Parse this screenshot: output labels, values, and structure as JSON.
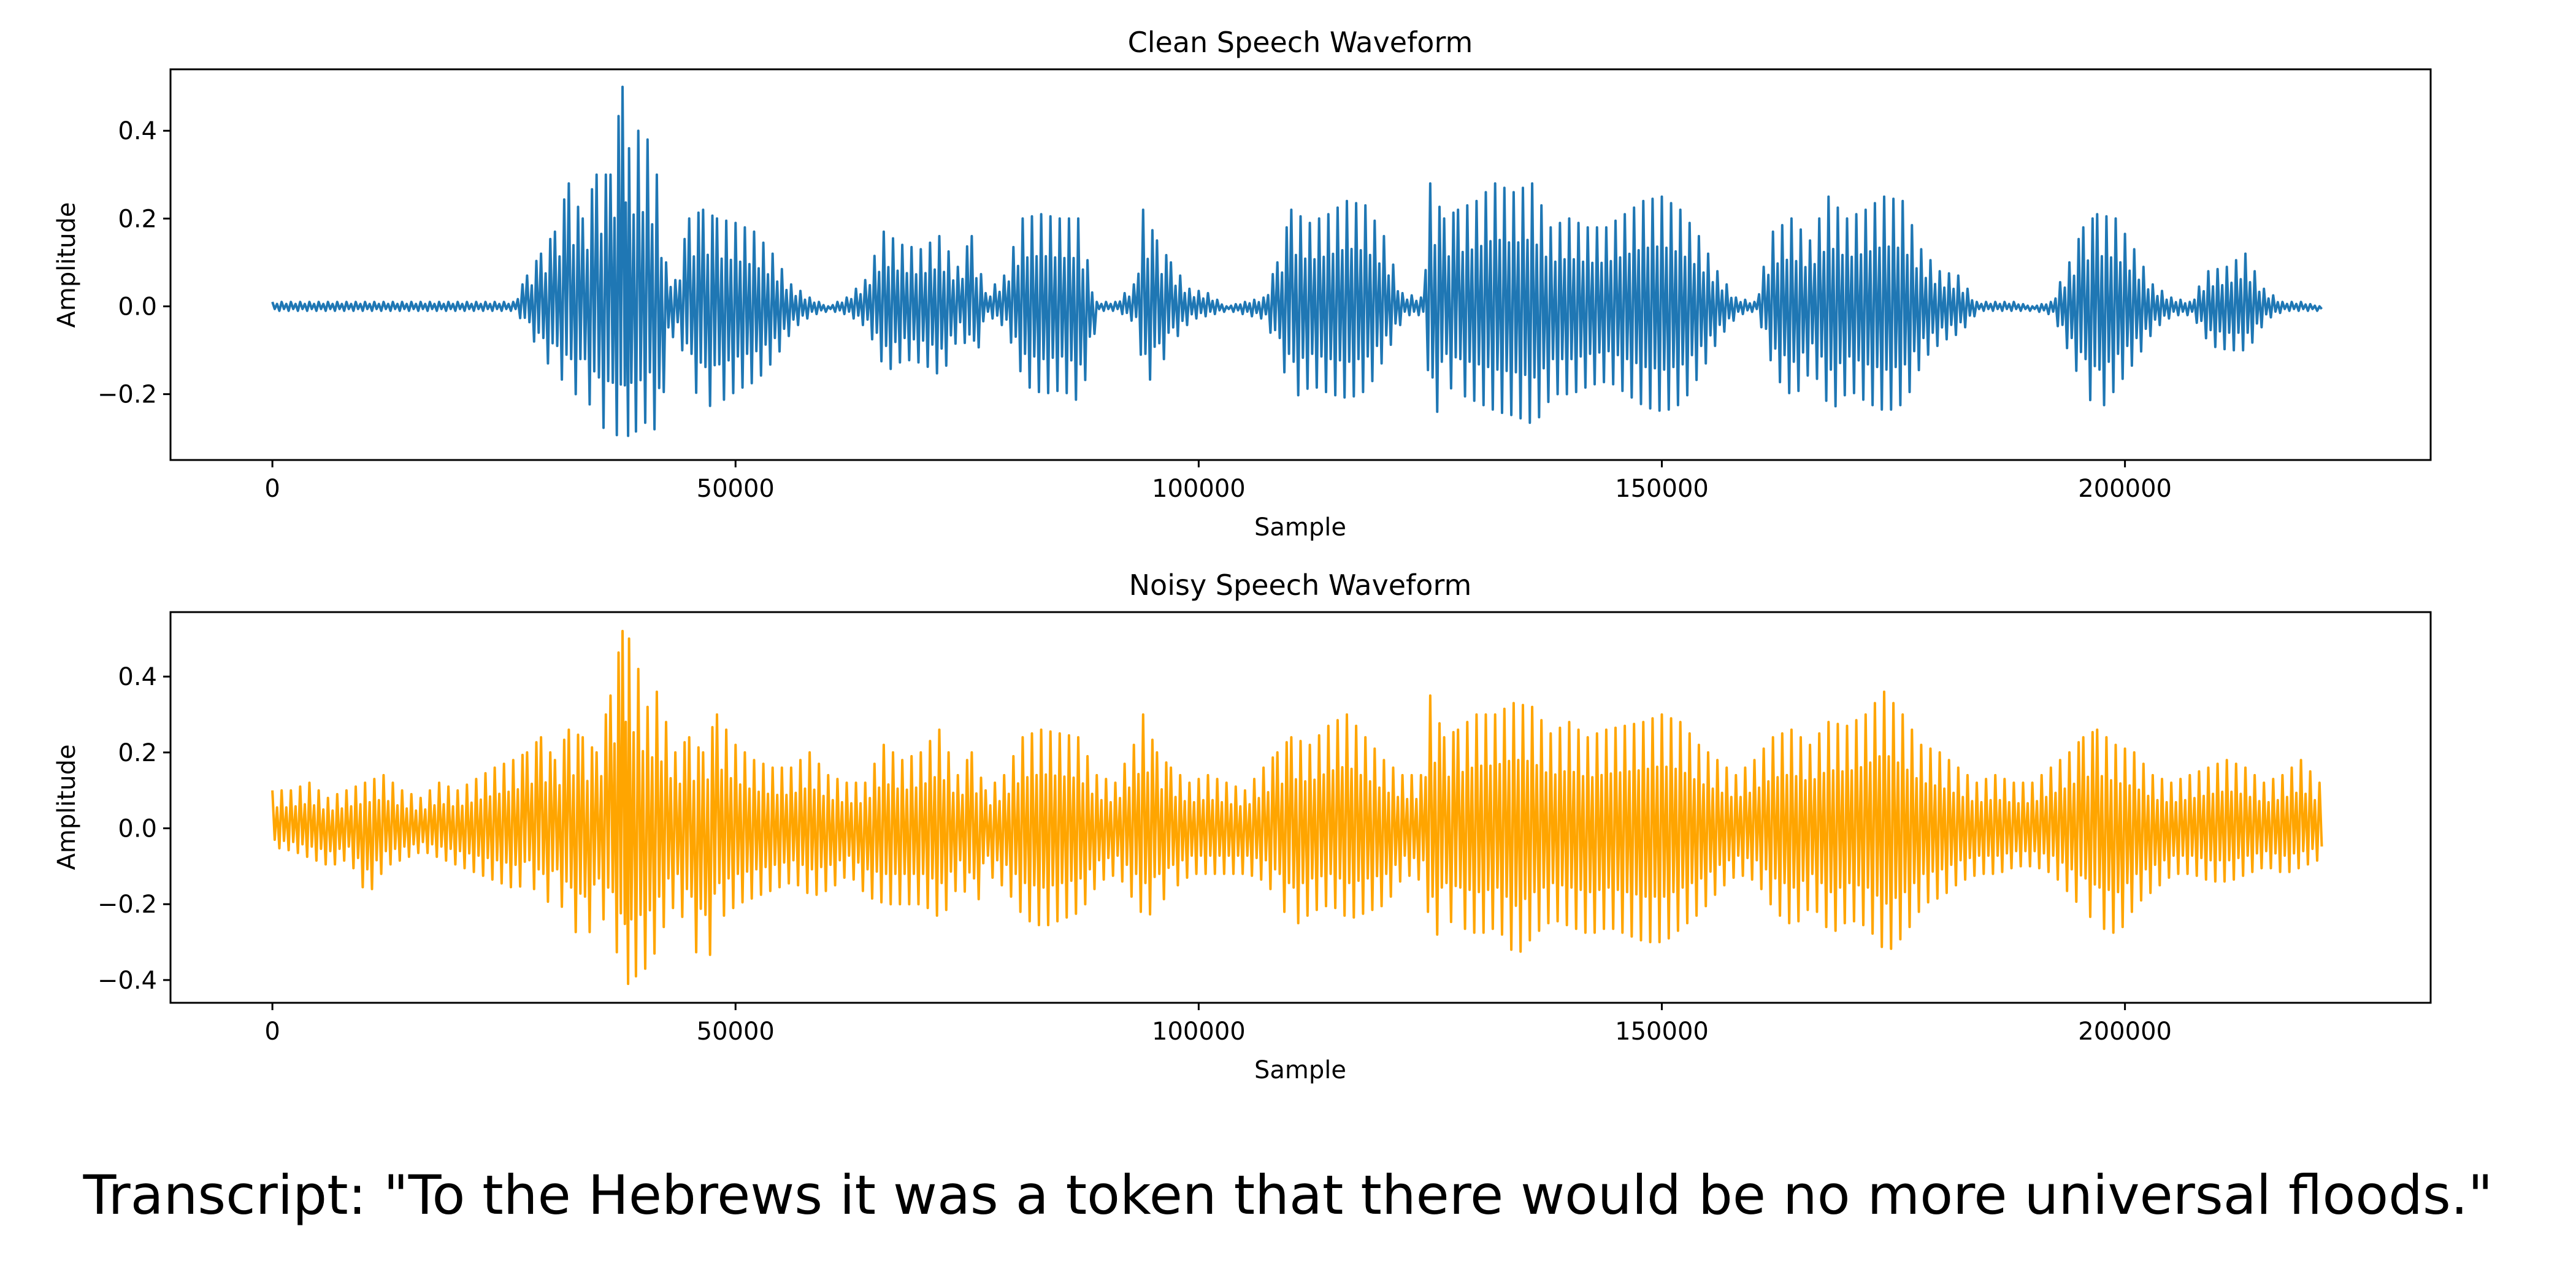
{
  "chart_data": [
    {
      "type": "line",
      "title": "Clean Speech Waveform",
      "xlabel": "Sample",
      "ylabel": "Amplitude",
      "xlim": [
        -11000,
        233000
      ],
      "ylim": [
        -0.35,
        0.54
      ],
      "xticks": [
        0,
        50000,
        100000,
        150000,
        200000
      ],
      "xtick_labels": [
        "0",
        "50000",
        "100000",
        "150000",
        "200000"
      ],
      "yticks": [
        0.4,
        0.2,
        0.0,
        -0.2
      ],
      "ytick_labels": [
        "0.4",
        "0.2",
        "0.0",
        "−0.2"
      ],
      "grid": false,
      "series": [
        {
          "color": "#1f77b4",
          "x": [
            0,
            2000,
            4000,
            6000,
            8000,
            10000,
            12000,
            14000,
            16000,
            18000,
            20000,
            22000,
            24000,
            26000,
            27500,
            29000,
            30500,
            32000,
            33500,
            35000,
            36500,
            37800,
            38500,
            39500,
            40500,
            41500,
            42500,
            43500,
            45000,
            46500,
            48000,
            50000,
            52000,
            54000,
            56000,
            58000,
            60000,
            62000,
            64000,
            66000,
            68000,
            70000,
            72000,
            74000,
            75500,
            77000,
            79000,
            81000,
            83000,
            85000,
            87000,
            89000,
            91000,
            93000,
            94000,
            95500,
            97000,
            99000,
            101000,
            103000,
            105000,
            107000,
            108500,
            110000,
            112000,
            114000,
            116000,
            118000,
            120000,
            122000,
            124000,
            125000,
            126500,
            128000,
            130000,
            132000,
            134000,
            136000,
            138000,
            140000,
            142000,
            144000,
            146000,
            148000,
            150000,
            152000,
            154000,
            156000,
            158000,
            160000,
            162000,
            164000,
            166000,
            168000,
            170000,
            172000,
            174000,
            176000,
            178000,
            180000,
            182000,
            184000,
            186000,
            188000,
            190000,
            192000,
            194000,
            195500,
            197000,
            199000,
            201000,
            203000,
            205000,
            207000,
            209000,
            211000,
            213000,
            215000,
            217000,
            219000,
            221000
          ],
          "y_max": [
            0.01,
            0.01,
            0.01,
            0.01,
            0.01,
            0.01,
            0.01,
            0.01,
            0.01,
            0.01,
            0.01,
            0.01,
            0.01,
            0.01,
            0.07,
            0.12,
            0.17,
            0.28,
            0.2,
            0.3,
            0.3,
            0.5,
            0.36,
            0.4,
            0.38,
            0.3,
            0.1,
            0.06,
            0.2,
            0.22,
            0.2,
            0.19,
            0.17,
            0.12,
            0.05,
            0.02,
            0.0,
            0.02,
            0.06,
            0.17,
            0.14,
            0.13,
            0.16,
            0.09,
            0.16,
            0.03,
            0.07,
            0.2,
            0.21,
            0.2,
            0.2,
            0.01,
            0.01,
            0.05,
            0.22,
            0.15,
            0.1,
            0.04,
            0.03,
            0.0,
            0.01,
            0.02,
            0.1,
            0.22,
            0.19,
            0.21,
            0.24,
            0.23,
            0.16,
            0.03,
            0.02,
            0.28,
            0.2,
            0.22,
            0.24,
            0.28,
            0.26,
            0.28,
            0.18,
            0.2,
            0.18,
            0.18,
            0.21,
            0.24,
            0.25,
            0.22,
            0.16,
            0.08,
            0.02,
            0.01,
            0.17,
            0.2,
            0.15,
            0.25,
            0.2,
            0.22,
            0.25,
            0.24,
            0.13,
            0.08,
            0.07,
            0.01,
            0.01,
            0.01,
            0.0,
            0.01,
            0.1,
            0.18,
            0.21,
            0.2,
            0.13,
            0.05,
            0.02,
            0.01,
            0.08,
            0.09,
            0.12,
            0.04,
            0.01,
            0.01,
            0.0
          ],
          "y_min": [
            -0.01,
            -0.01,
            -0.01,
            -0.01,
            -0.01,
            -0.01,
            -0.01,
            -0.01,
            -0.01,
            -0.01,
            -0.01,
            -0.01,
            -0.01,
            -0.01,
            -0.06,
            -0.12,
            -0.15,
            -0.2,
            -0.2,
            -0.27,
            -0.29,
            -0.3,
            -0.29,
            -0.28,
            -0.25,
            -0.31,
            -0.08,
            -0.06,
            -0.18,
            -0.23,
            -0.22,
            -0.19,
            -0.17,
            -0.12,
            -0.05,
            -0.02,
            -0.01,
            -0.02,
            -0.05,
            -0.15,
            -0.12,
            -0.13,
            -0.16,
            -0.06,
            -0.13,
            -0.02,
            -0.05,
            -0.18,
            -0.2,
            -0.19,
            -0.22,
            -0.01,
            -0.01,
            -0.04,
            -0.18,
            -0.14,
            -0.08,
            -0.03,
            -0.02,
            -0.01,
            -0.02,
            -0.03,
            -0.12,
            -0.21,
            -0.18,
            -0.2,
            -0.21,
            -0.19,
            -0.11,
            -0.02,
            -0.02,
            -0.27,
            -0.18,
            -0.2,
            -0.22,
            -0.24,
            -0.25,
            -0.27,
            -0.2,
            -0.2,
            -0.18,
            -0.17,
            -0.2,
            -0.23,
            -0.24,
            -0.22,
            -0.15,
            -0.07,
            -0.02,
            -0.01,
            -0.16,
            -0.21,
            -0.14,
            -0.24,
            -0.19,
            -0.22,
            -0.24,
            -0.22,
            -0.12,
            -0.08,
            -0.06,
            -0.01,
            -0.01,
            -0.01,
            -0.01,
            -0.02,
            -0.12,
            -0.2,
            -0.24,
            -0.18,
            -0.12,
            -0.05,
            -0.02,
            -0.02,
            -0.09,
            -0.1,
            -0.1,
            -0.03,
            -0.01,
            -0.01,
            -0.01
          ]
        }
      ]
    },
    {
      "type": "line",
      "title": "Noisy Speech Waveform",
      "xlabel": "Sample",
      "ylabel": "Amplitude",
      "xlim": [
        -11000,
        233000
      ],
      "ylim": [
        -0.46,
        0.57
      ],
      "xticks": [
        0,
        50000,
        100000,
        150000,
        200000
      ],
      "xtick_labels": [
        "0",
        "50000",
        "100000",
        "150000",
        "200000"
      ],
      "yticks": [
        0.4,
        0.2,
        0.0,
        -0.2,
        -0.4
      ],
      "ytick_labels": [
        "0.4",
        "0.2",
        "0.0",
        "−0.2",
        "−0.4"
      ],
      "grid": false,
      "series": [
        {
          "color": "#ffa500",
          "x": [
            0,
            2000,
            4000,
            6000,
            8000,
            10000,
            12000,
            14000,
            16000,
            18000,
            20000,
            22000,
            24000,
            26000,
            27500,
            29000,
            30500,
            32000,
            33500,
            35000,
            36500,
            37800,
            38500,
            39500,
            40500,
            41500,
            42500,
            43500,
            45000,
            46500,
            48000,
            50000,
            52000,
            54000,
            56000,
            58000,
            60000,
            62000,
            64000,
            66000,
            68000,
            70000,
            72000,
            74000,
            75500,
            77000,
            79000,
            81000,
            83000,
            85000,
            87000,
            89000,
            91000,
            93000,
            94000,
            95500,
            97000,
            99000,
            101000,
            103000,
            105000,
            107000,
            108500,
            110000,
            112000,
            114000,
            116000,
            118000,
            120000,
            122000,
            124000,
            125000,
            126500,
            128000,
            130000,
            132000,
            134000,
            136000,
            138000,
            140000,
            142000,
            144000,
            146000,
            148000,
            150000,
            152000,
            154000,
            156000,
            158000,
            160000,
            162000,
            164000,
            166000,
            168000,
            170000,
            172000,
            174000,
            176000,
            178000,
            180000,
            182000,
            184000,
            186000,
            188000,
            190000,
            192000,
            194000,
            195500,
            197000,
            199000,
            201000,
            203000,
            205000,
            207000,
            209000,
            211000,
            213000,
            215000,
            217000,
            219000,
            221000
          ],
          "y_max": [
            0.1,
            0.1,
            0.12,
            0.08,
            0.1,
            0.12,
            0.14,
            0.1,
            0.08,
            0.12,
            0.1,
            0.13,
            0.16,
            0.18,
            0.2,
            0.24,
            0.18,
            0.26,
            0.24,
            0.2,
            0.35,
            0.52,
            0.5,
            0.42,
            0.32,
            0.36,
            0.28,
            0.2,
            0.24,
            0.2,
            0.3,
            0.22,
            0.18,
            0.16,
            0.16,
            0.2,
            0.14,
            0.12,
            0.12,
            0.22,
            0.18,
            0.2,
            0.26,
            0.14,
            0.2,
            0.1,
            0.14,
            0.24,
            0.26,
            0.25,
            0.24,
            0.14,
            0.12,
            0.22,
            0.3,
            0.2,
            0.16,
            0.12,
            0.14,
            0.12,
            0.1,
            0.16,
            0.2,
            0.24,
            0.22,
            0.27,
            0.3,
            0.24,
            0.18,
            0.14,
            0.14,
            0.35,
            0.24,
            0.26,
            0.3,
            0.3,
            0.33,
            0.32,
            0.25,
            0.28,
            0.24,
            0.26,
            0.27,
            0.28,
            0.3,
            0.28,
            0.22,
            0.18,
            0.14,
            0.18,
            0.24,
            0.26,
            0.22,
            0.28,
            0.27,
            0.3,
            0.36,
            0.3,
            0.22,
            0.2,
            0.16,
            0.12,
            0.14,
            0.12,
            0.12,
            0.16,
            0.2,
            0.24,
            0.26,
            0.22,
            0.2,
            0.14,
            0.12,
            0.14,
            0.16,
            0.18,
            0.16,
            0.12,
            0.14,
            0.18,
            0.12
          ],
          "y_min": [
            -0.05,
            -0.06,
            -0.08,
            -0.1,
            -0.08,
            -0.18,
            -0.1,
            -0.08,
            -0.06,
            -0.08,
            -0.1,
            -0.12,
            -0.14,
            -0.16,
            -0.14,
            -0.2,
            -0.18,
            -0.26,
            -0.3,
            -0.22,
            -0.28,
            -0.42,
            -0.4,
            -0.38,
            -0.36,
            -0.3,
            -0.22,
            -0.2,
            -0.3,
            -0.38,
            -0.24,
            -0.2,
            -0.18,
            -0.16,
            -0.14,
            -0.18,
            -0.16,
            -0.12,
            -0.18,
            -0.2,
            -0.2,
            -0.2,
            -0.24,
            -0.14,
            -0.22,
            -0.12,
            -0.16,
            -0.24,
            -0.26,
            -0.24,
            -0.22,
            -0.14,
            -0.12,
            -0.2,
            -0.24,
            -0.2,
            -0.16,
            -0.12,
            -0.12,
            -0.12,
            -0.12,
            -0.14,
            -0.2,
            -0.26,
            -0.22,
            -0.2,
            -0.24,
            -0.22,
            -0.2,
            -0.12,
            -0.14,
            -0.3,
            -0.24,
            -0.26,
            -0.28,
            -0.26,
            -0.34,
            -0.28,
            -0.24,
            -0.26,
            -0.28,
            -0.26,
            -0.28,
            -0.3,
            -0.3,
            -0.26,
            -0.22,
            -0.16,
            -0.12,
            -0.14,
            -0.22,
            -0.26,
            -0.2,
            -0.28,
            -0.24,
            -0.26,
            -0.33,
            -0.28,
            -0.2,
            -0.18,
            -0.14,
            -0.12,
            -0.12,
            -0.1,
            -0.1,
            -0.12,
            -0.18,
            -0.22,
            -0.26,
            -0.28,
            -0.2,
            -0.16,
            -0.12,
            -0.12,
            -0.14,
            -0.14,
            -0.12,
            -0.1,
            -0.12,
            -0.1,
            -0.08
          ]
        }
      ]
    }
  ],
  "transcript": "Transcript: \"To the Hebrews it was a token that there would be no more universal floods.\""
}
